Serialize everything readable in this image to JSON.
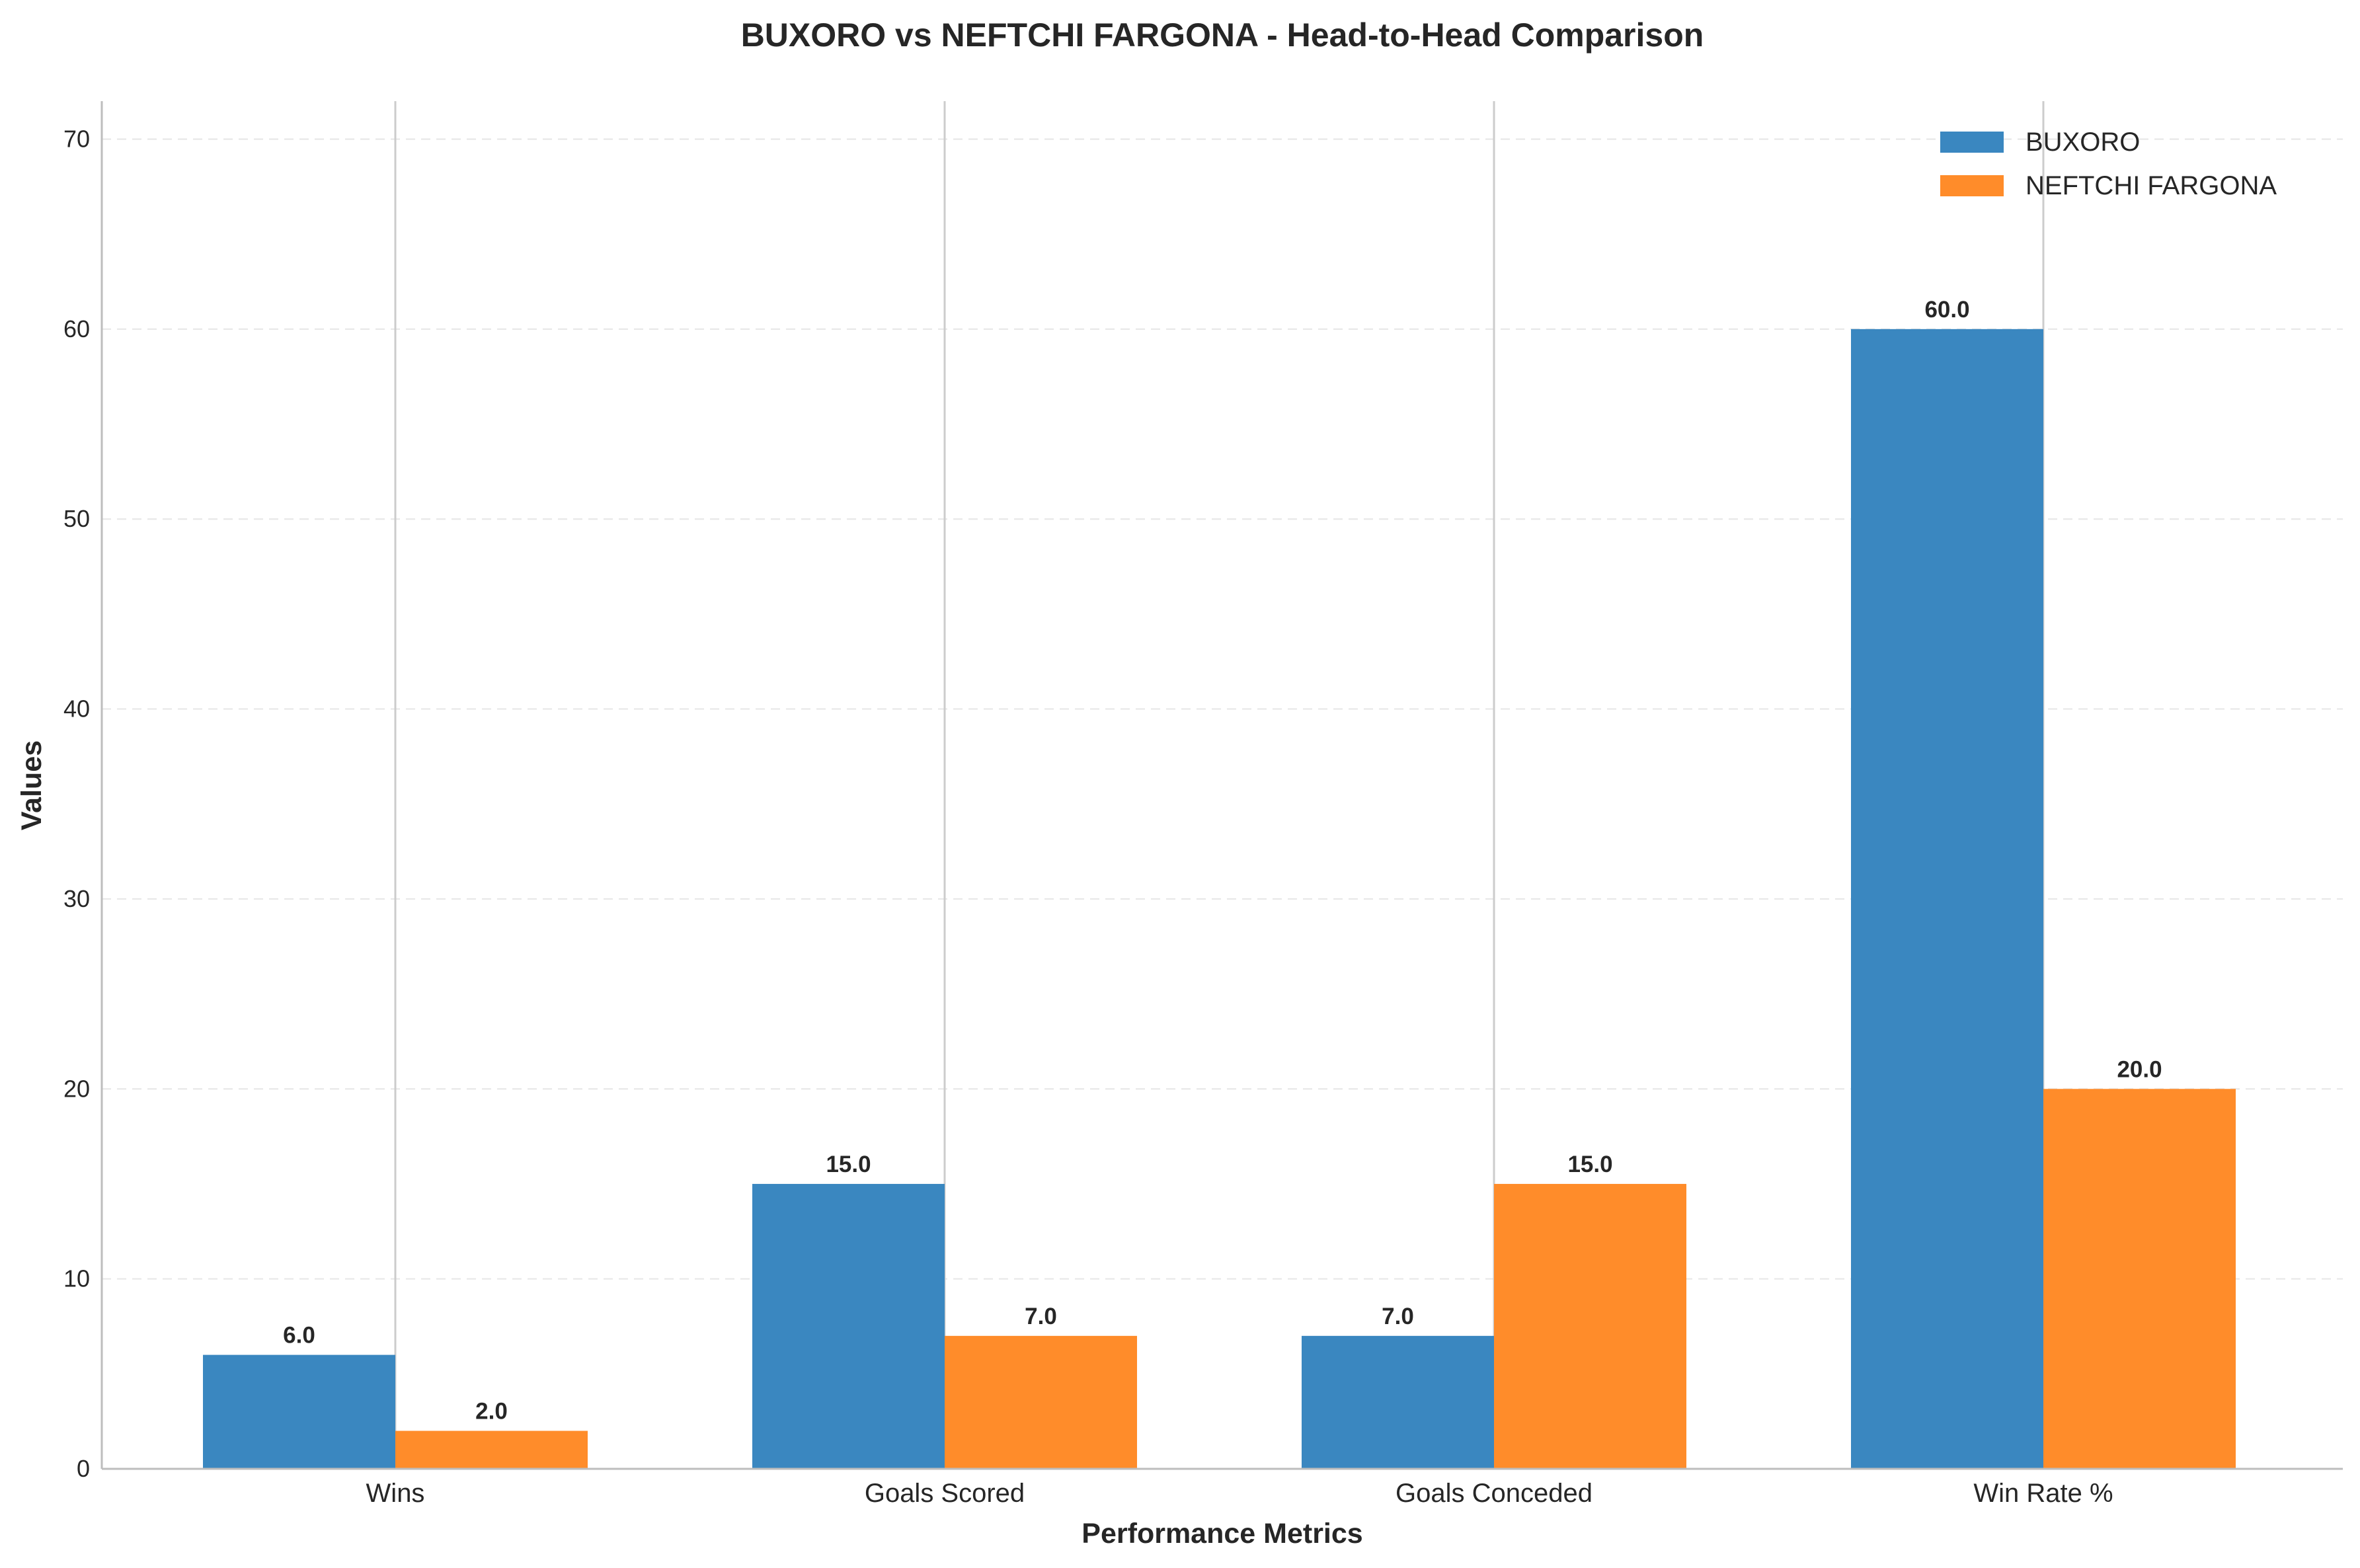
{
  "chart_data": {
    "type": "bar",
    "title": "BUXORO vs NEFTCHI FARGONA - Head-to-Head Comparison",
    "xlabel": "Performance Metrics",
    "ylabel": "Values",
    "categories": [
      "Wins",
      "Goals Scored",
      "Goals Conceded",
      "Win Rate %"
    ],
    "series": [
      {
        "name": "BUXORO",
        "values": [
          6.0,
          15.0,
          7.0,
          60.0
        ],
        "color": "#3a87c0"
      },
      {
        "name": "NEFTCHI FARGONA",
        "values": [
          2.0,
          7.0,
          15.0,
          20.0
        ],
        "color": "#ff8c2a"
      }
    ],
    "value_labels": [
      [
        "6.0",
        "15.0",
        "7.0",
        "60.0"
      ],
      [
        "2.0",
        "7.0",
        "15.0",
        "20.0"
      ]
    ],
    "ylim": [
      0,
      72
    ],
    "yticks": [
      0,
      10,
      20,
      30,
      40,
      50,
      60,
      70
    ],
    "ytick_labels": [
      "0",
      "10",
      "20",
      "30",
      "40",
      "50",
      "60",
      "70"
    ],
    "grid": true,
    "legend": "top-right"
  }
}
